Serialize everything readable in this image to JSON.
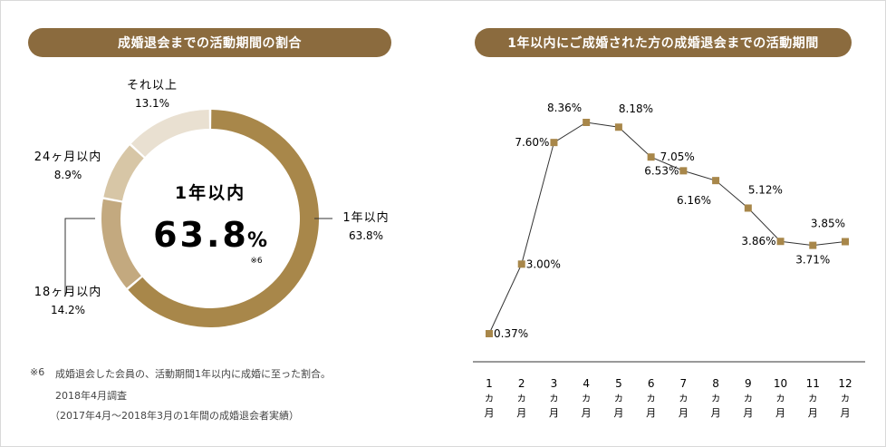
{
  "left_panel": {
    "heading": "成婚退会までの活動期間の割合",
    "center_label": "1年以内",
    "center_value": "63.8",
    "center_unit": "%",
    "center_footnote": "※6",
    "footnote": {
      "mark": "※6",
      "line1": "成婚退会した会員の、活動期間1年以内に成婚に至った割合。",
      "line2": "2018年4月調査",
      "line3": "（2017年4月〜2018年3月の1年間の成婚退会者実績）"
    }
  },
  "right_panel": {
    "heading": "1年以内にご成婚された方の成婚退会までの活動期間"
  },
  "colors": {
    "accent": "#8b6b3e",
    "donut": [
      "#a8874a",
      "#c3a97f",
      "#d7c6a6",
      "#e9e0d1"
    ],
    "marker": "#a8874a",
    "line": "#333333"
  },
  "chart_data": [
    {
      "type": "pie",
      "title": "成婚退会までの活動期間の割合",
      "categories": [
        "1年以内",
        "18ヶ月以内",
        "24ヶ月以内",
        "それ以上"
      ],
      "values": [
        63.8,
        14.2,
        8.9,
        13.1
      ],
      "labels": [
        {
          "name": "1年以内",
          "value": "63.8%"
        },
        {
          "name": "18ヶ月以内",
          "value": "14.2%"
        },
        {
          "name": "24ヶ月以内",
          "value": "8.9%"
        },
        {
          "name": "それ以上",
          "value": "13.1%"
        }
      ]
    },
    {
      "type": "line",
      "title": "1年以内にご成婚された方の成婚退会までの活動期間",
      "categories": [
        "1",
        "2",
        "3",
        "4",
        "5",
        "6",
        "7",
        "8",
        "9",
        "10",
        "11",
        "12"
      ],
      "tick_sub": [
        "カ",
        "月"
      ],
      "values": [
        0.37,
        3.0,
        7.6,
        8.36,
        8.18,
        7.05,
        6.53,
        6.16,
        5.12,
        3.86,
        3.71,
        3.85
      ],
      "value_labels": [
        "0.37%",
        "3.00%",
        "7.60%",
        "8.36%",
        "8.18%",
        "7.05%",
        "6.53%",
        "6.16%",
        "5.12%",
        "3.86%",
        "3.71%",
        "3.85%"
      ],
      "grid": false
    }
  ]
}
